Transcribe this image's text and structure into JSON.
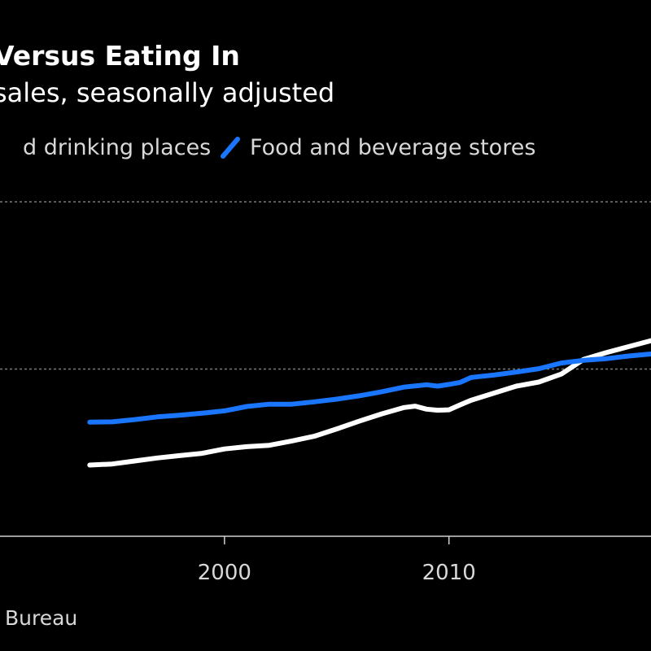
{
  "chart_data": {
    "type": "line",
    "title": "Versus Eating In",
    "subtitle": "sales, seasonally adjusted",
    "source": "Bureau",
    "x_range": [
      1990,
      2019
    ],
    "y_range": [
      0,
      100
    ],
    "x_ticks": [
      2000,
      2010
    ],
    "x_tick_labels": [
      "2000",
      "2010"
    ],
    "y_gridlines": [
      50,
      100
    ],
    "grid": true,
    "legend_placement": "top",
    "series": [
      {
        "name": "d drinking places",
        "color": "#ffffff",
        "points": [
          [
            1994,
            21.3
          ],
          [
            1995,
            21.6
          ],
          [
            1996,
            22.5
          ],
          [
            1997,
            23.4
          ],
          [
            1998,
            24.1
          ],
          [
            1999,
            24.8
          ],
          [
            2000,
            26.1
          ],
          [
            2001,
            26.8
          ],
          [
            2002,
            27.2
          ],
          [
            2003,
            28.5
          ],
          [
            2004,
            29.9
          ],
          [
            2005,
            32.1
          ],
          [
            2006,
            34.4
          ],
          [
            2007,
            36.6
          ],
          [
            2008,
            38.5
          ],
          [
            2008.5,
            38.9
          ],
          [
            2009,
            38.0
          ],
          [
            2009.5,
            37.7
          ],
          [
            2010,
            37.8
          ],
          [
            2010.5,
            39.3
          ],
          [
            2011,
            40.7
          ],
          [
            2012,
            42.8
          ],
          [
            2013,
            44.9
          ],
          [
            2014,
            46.1
          ],
          [
            2015,
            48.5
          ],
          [
            2016,
            52.9
          ],
          [
            2017,
            54.9
          ],
          [
            2018,
            56.7
          ],
          [
            2019,
            58.5
          ]
        ]
      },
      {
        "name": "Food and beverage stores",
        "color": "#1a75ff",
        "points": [
          [
            1994,
            34.1
          ],
          [
            1995,
            34.2
          ],
          [
            1996,
            34.9
          ],
          [
            1997,
            35.7
          ],
          [
            1998,
            36.2
          ],
          [
            1999,
            36.8
          ],
          [
            2000,
            37.5
          ],
          [
            2001,
            38.8
          ],
          [
            2002,
            39.5
          ],
          [
            2003,
            39.5
          ],
          [
            2004,
            40.2
          ],
          [
            2005,
            41.0
          ],
          [
            2006,
            42.0
          ],
          [
            2007,
            43.2
          ],
          [
            2008,
            44.6
          ],
          [
            2009,
            45.3
          ],
          [
            2009.5,
            44.9
          ],
          [
            2010,
            45.4
          ],
          [
            2010.5,
            46.0
          ],
          [
            2011,
            47.5
          ],
          [
            2012,
            48.2
          ],
          [
            2013,
            49.1
          ],
          [
            2014,
            50.1
          ],
          [
            2015,
            51.8
          ],
          [
            2016,
            52.6
          ],
          [
            2017,
            53.1
          ],
          [
            2018,
            53.9
          ],
          [
            2019,
            54.5
          ]
        ]
      }
    ]
  }
}
